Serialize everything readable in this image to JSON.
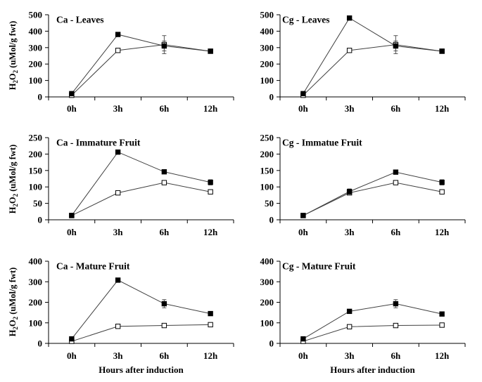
{
  "chart_data": [
    {
      "type": "line",
      "title": "Ca - Leaves",
      "categories": [
        "0h",
        "3h",
        "6h",
        "12h"
      ],
      "ylim": [
        0,
        500
      ],
      "yticks": [
        "0",
        "100",
        "200",
        "300",
        "400",
        "500"
      ],
      "ylabel": {
        "main": "H",
        "sub": "2",
        "mid": "O",
        "sub2": "2",
        "tail": " (uMol/g fwt)"
      },
      "xlabel": "",
      "series": [
        {
          "marker": "filled-square",
          "values": [
            20,
            380,
            310,
            278
          ],
          "errors": [
            0,
            8,
            30,
            6
          ]
        },
        {
          "marker": "open-square",
          "values": [
            10,
            283,
            318,
            278
          ],
          "errors": [
            0,
            0,
            55,
            0
          ]
        }
      ]
    },
    {
      "type": "line",
      "title": "Cg - Leaves",
      "categories": [
        "0h",
        "3h",
        "6h",
        "12h"
      ],
      "ylim": [
        0,
        500
      ],
      "yticks": [
        "0",
        "100",
        "200",
        "300",
        "400",
        "500"
      ],
      "ylabel": null,
      "xlabel": "",
      "series": [
        {
          "marker": "filled-square",
          "values": [
            20,
            480,
            310,
            278
          ],
          "errors": [
            0,
            8,
            30,
            5
          ]
        },
        {
          "marker": "open-square",
          "values": [
            10,
            283,
            318,
            278
          ],
          "errors": [
            0,
            0,
            55,
            0
          ]
        }
      ]
    },
    {
      "type": "line",
      "title": "Ca - Immature Fruit",
      "categories": [
        "0h",
        "3h",
        "6h",
        "12h"
      ],
      "ylim": [
        0,
        250
      ],
      "yticks": [
        "0",
        "50",
        "100",
        "150",
        "200",
        "250"
      ],
      "ylabel": {
        "main": "H",
        "sub": "2",
        "mid": "O",
        "sub2": "2",
        "tail": " (uMol/g fwt)"
      },
      "xlabel": "",
      "series": [
        {
          "marker": "filled-square",
          "values": [
            13,
            206,
            146,
            114
          ],
          "errors": [
            0,
            6,
            2,
            8
          ]
        },
        {
          "marker": "open-square",
          "values": [
            13,
            82,
            113,
            85
          ],
          "errors": [
            0,
            0,
            0,
            0
          ]
        }
      ]
    },
    {
      "type": "line",
      "title": "Cg - Immatue Fruit",
      "categories": [
        "0h",
        "3h",
        "6h",
        "12h"
      ],
      "ylim": [
        0,
        250
      ],
      "yticks": [
        "0",
        "50",
        "100",
        "150",
        "200",
        "250"
      ],
      "ylabel": null,
      "xlabel": "",
      "series": [
        {
          "marker": "filled-square",
          "values": [
            13,
            86,
            145,
            114
          ],
          "errors": [
            0,
            8,
            2,
            8
          ]
        },
        {
          "marker": "open-square",
          "values": [
            13,
            82,
            113,
            85
          ],
          "errors": [
            0,
            0,
            0,
            0
          ]
        }
      ]
    },
    {
      "type": "line",
      "title": "Ca - Mature Fruit",
      "categories": [
        "0h",
        "3h",
        "6h",
        "12h"
      ],
      "ylim": [
        0,
        400
      ],
      "yticks": [
        "0",
        "100",
        "200",
        "300",
        "400"
      ],
      "ylabel": {
        "main": "H",
        "sub": "2",
        "mid": "O",
        "sub2": "2",
        "tail": " (uMol/g fwt)"
      },
      "xlabel": "Hours after induction",
      "series": [
        {
          "marker": "filled-square",
          "values": [
            22,
            308,
            193,
            145
          ],
          "errors": [
            0,
            4,
            20,
            5
          ]
        },
        {
          "marker": "open-square",
          "values": [
            10,
            83,
            87,
            91
          ],
          "errors": [
            0,
            0,
            0,
            0
          ]
        }
      ]
    },
    {
      "type": "line",
      "title": "Cg - Mature Fruit",
      "categories": [
        "0h",
        "3h",
        "6h",
        "12h"
      ],
      "ylim": [
        0,
        400
      ],
      "yticks": [
        "0",
        "100",
        "200",
        "300",
        "400"
      ],
      "ylabel": null,
      "xlabel": "Hours after induction",
      "series": [
        {
          "marker": "filled-square",
          "values": [
            22,
            156,
            193,
            143
          ],
          "errors": [
            0,
            4,
            20,
            5
          ]
        },
        {
          "marker": "open-square",
          "values": [
            10,
            81,
            87,
            89
          ],
          "errors": [
            0,
            0,
            0,
            0
          ]
        }
      ]
    }
  ]
}
